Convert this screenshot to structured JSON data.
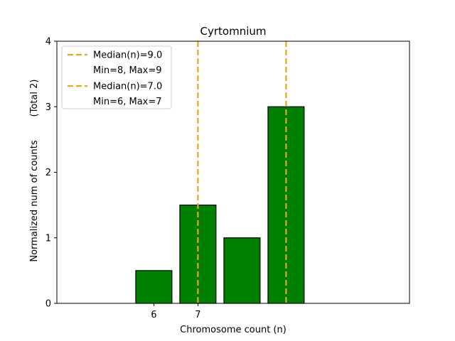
{
  "chart_data": {
    "type": "bar",
    "title": "Cyrtomnium",
    "xlabel": "Chromosome count (n)",
    "ylabel": "Normalized num of counts",
    "ylabel_note": "(Total 2)",
    "xlim": [
      3.8,
      11.8
    ],
    "ylim": [
      0,
      4
    ],
    "xticks": [
      6,
      7
    ],
    "yticks": [
      0,
      1,
      2,
      3,
      4
    ],
    "bars": [
      {
        "x": 6.0,
        "value": 0.5
      },
      {
        "x": 7.0,
        "value": 1.5
      },
      {
        "x": 8.0,
        "value": 1.0
      },
      {
        "x": 9.0,
        "value": 3.0
      }
    ],
    "bar_width": 0.82,
    "baseline_end": 11.4,
    "bar_color": "#008000",
    "bar_edge_color": "#000000",
    "median_lines": [
      {
        "x": 7.0,
        "color": "#E6A817"
      },
      {
        "x": 9.0,
        "color": "#E6A817"
      }
    ],
    "legend": {
      "placement": "top-left",
      "entries": [
        {
          "label": "Median(n)=9.0",
          "sub": "Min=8, Max=9",
          "color": "#E6A817"
        },
        {
          "label": "Median(n)=7.0",
          "sub": "Min=6, Max=7",
          "color": "#E6A817"
        }
      ]
    },
    "grid": false
  }
}
